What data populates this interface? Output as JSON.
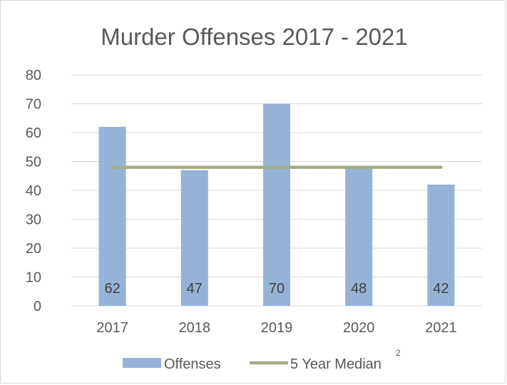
{
  "chart_data": {
    "type": "bar",
    "title": "Murder Offenses 2017 - 2021",
    "categories": [
      "2017",
      "2018",
      "2019",
      "2020",
      "2021"
    ],
    "series": [
      {
        "name": "Offenses",
        "type": "bar",
        "values": [
          62,
          47,
          70,
          48,
          42
        ],
        "color": "#95b3d7"
      },
      {
        "name": "5 Year Median",
        "type": "line",
        "values": [
          48,
          48,
          48,
          48,
          48
        ],
        "color": "#a4ac86"
      }
    ],
    "data_labels": [
      "62",
      "47",
      "70",
      "48",
      "42"
    ],
    "yticks": [
      "0",
      "10",
      "20",
      "30",
      "40",
      "50",
      "60",
      "70",
      "80"
    ],
    "ylim": [
      0,
      80
    ],
    "grid": true,
    "legend": {
      "placement": "bottom",
      "entries": [
        "Offenses",
        "5 Year Median"
      ],
      "superscript": "2"
    }
  }
}
